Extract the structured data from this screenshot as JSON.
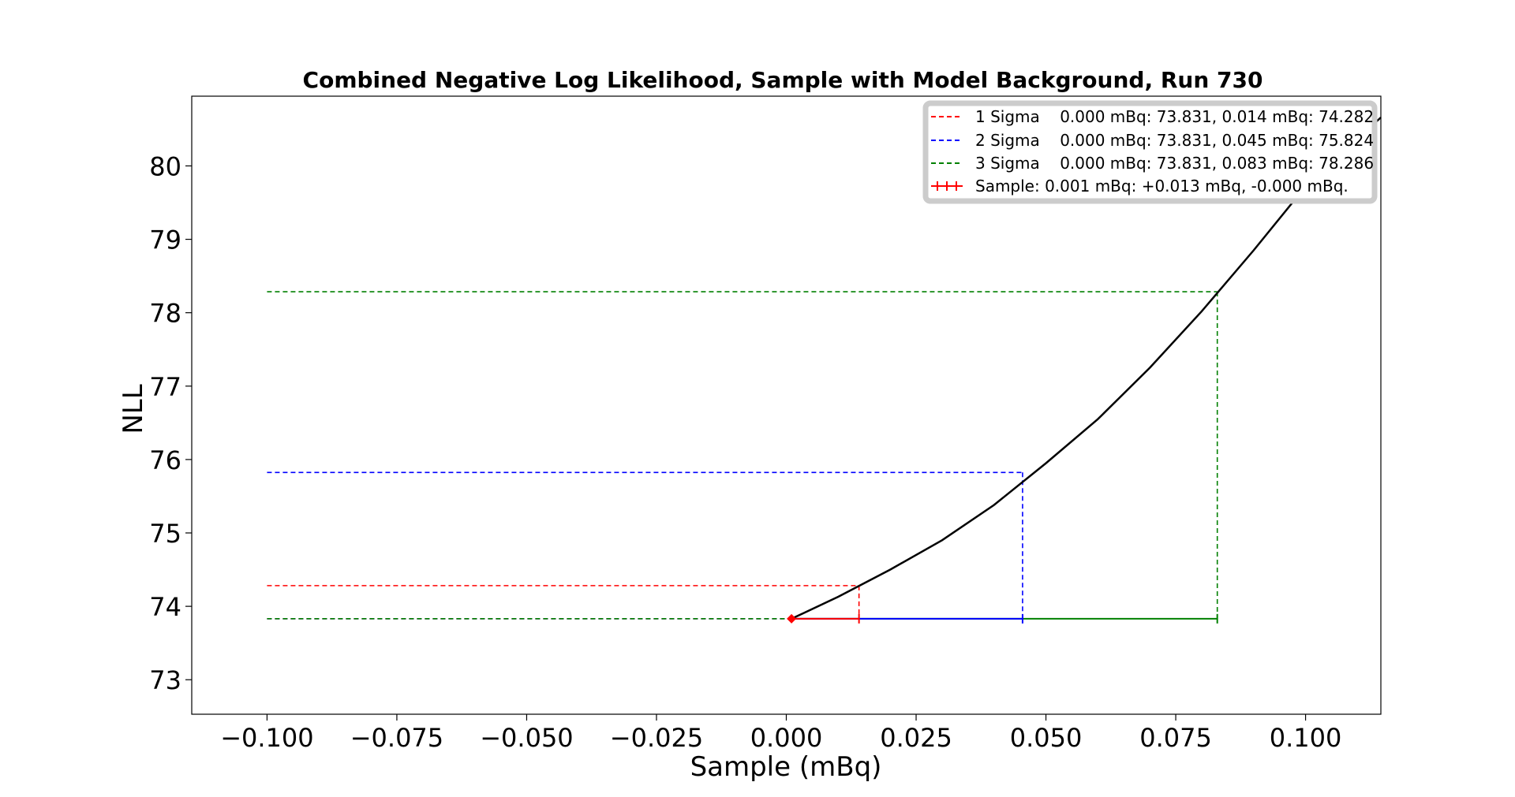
{
  "chart_data": {
    "type": "line",
    "title": "Combined Negative Log Likelihood, Sample with Model Background, Run 730",
    "xlabel": "Sample (mBq)",
    "ylabel": "NLL",
    "xlim": [
      -0.1145,
      0.1145
    ],
    "ylim": [
      72.53,
      80.95
    ],
    "xticks": [
      -0.1,
      -0.075,
      -0.05,
      -0.025,
      0.0,
      0.025,
      0.05,
      0.075,
      0.1
    ],
    "xtick_labels": [
      "−0.100",
      "−0.075",
      "−0.050",
      "−0.025",
      "0.000",
      "0.025",
      "0.050",
      "0.075",
      "0.100"
    ],
    "yticks": [
      73,
      74,
      75,
      76,
      77,
      78,
      79,
      80
    ],
    "ytick_labels": [
      "73",
      "74",
      "75",
      "76",
      "77",
      "78",
      "79",
      "80"
    ],
    "grid": false,
    "legend_position": "top-right",
    "curve": {
      "color": "#000000",
      "x": [
        0.001,
        0.01,
        0.02,
        0.03,
        0.04,
        0.05,
        0.06,
        0.07,
        0.08,
        0.09,
        0.1,
        0.1145
      ],
      "y": [
        73.831,
        74.13,
        74.5,
        74.9,
        75.38,
        75.95,
        76.55,
        77.25,
        78.02,
        78.85,
        79.72,
        80.66
      ]
    },
    "sigma_lines": [
      {
        "label": "1 Sigma    0.000 mBq: 73.831, 0.014 mBq: 74.282",
        "color": "#ff0000",
        "x_start": -0.1,
        "x_bound": 0.014,
        "y_min": 73.831,
        "y_level": 74.282
      },
      {
        "label": "2 Sigma    0.000 mBq: 73.831, 0.045 mBq: 75.824",
        "color": "#0000ff",
        "x_start": -0.1,
        "x_bound": 0.0455,
        "y_min": 73.831,
        "y_level": 75.824
      },
      {
        "label": "3 Sigma    0.000 mBq: 73.831, 0.083 mBq: 78.286",
        "color": "#008000",
        "x_start": -0.1,
        "x_bound": 0.083,
        "y_min": 73.831,
        "y_level": 78.286
      }
    ],
    "sample": {
      "label": "Sample: 0.001 mBq: +0.013 mBq, -0.000 mBq.",
      "color": "#ff0000",
      "x": 0.001,
      "y": 73.831,
      "err_plus": 0.013,
      "err_minus": 0.0
    }
  }
}
